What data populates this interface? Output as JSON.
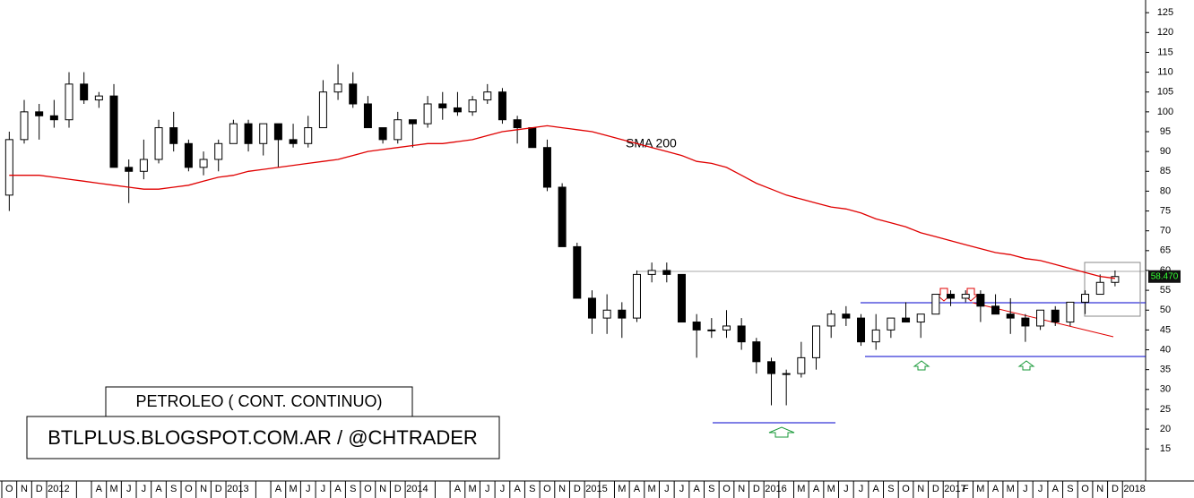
{
  "chart_data": {
    "type": "candlestick",
    "categories": [
      "O",
      "N",
      "D",
      "2012",
      null,
      null,
      "A",
      "M",
      "J",
      "J",
      "A",
      "S",
      "O",
      "N",
      "D",
      "2013",
      null,
      null,
      "A",
      "M",
      "J",
      "J",
      "A",
      "S",
      "O",
      "N",
      "D",
      "2014",
      null,
      null,
      "A",
      "M",
      "J",
      "J",
      "A",
      "S",
      "O",
      "N",
      "D",
      "2015",
      null,
      "M",
      "A",
      "M",
      "J",
      "J",
      "A",
      "S",
      "O",
      "N",
      "D",
      "2016",
      null,
      "M",
      "A",
      "M",
      "J",
      "J",
      "A",
      "S",
      "O",
      "N",
      "D",
      "2017",
      "F",
      "M",
      "A",
      "M",
      "J",
      "J",
      "A",
      "S",
      "O",
      "N",
      "D",
      "2018"
    ],
    "open": [
      79,
      93,
      100,
      99,
      98,
      107,
      103,
      104,
      86,
      85,
      88,
      96,
      92,
      86,
      88,
      92,
      97,
      92,
      97,
      93,
      92,
      96,
      105,
      107,
      102,
      96,
      93,
      98,
      97,
      102,
      101,
      100,
      103,
      105,
      98,
      96,
      91,
      81,
      66,
      53,
      48,
      50,
      48,
      59,
      60,
      59,
      47,
      45,
      45,
      46,
      42,
      37,
      34,
      34,
      38,
      46,
      49,
      48,
      42,
      45,
      48,
      47,
      49,
      54,
      53,
      54,
      51,
      49,
      48,
      46,
      50,
      47,
      52,
      54,
      57,
      null
    ],
    "high": [
      95,
      103,
      102,
      103,
      110,
      110,
      105,
      107,
      88,
      93,
      98,
      100,
      93,
      90,
      93,
      98,
      98,
      97,
      97,
      97,
      99,
      108,
      112,
      110,
      104,
      96,
      100,
      98,
      104,
      105,
      105,
      104,
      107,
      106,
      99,
      96,
      93,
      82,
      67,
      55,
      54,
      52,
      60,
      62,
      62,
      59,
      49,
      48,
      50,
      48,
      43,
      38,
      35,
      42,
      46,
      50,
      51,
      49,
      49,
      48,
      52,
      49,
      54,
      55,
      55,
      55,
      54,
      53,
      49,
      50,
      51,
      52,
      55,
      59,
      60,
      null
    ],
    "low": [
      75,
      92,
      93,
      96,
      96,
      102,
      101,
      86,
      77,
      83,
      87,
      90,
      85,
      84,
      85,
      92,
      90,
      89,
      86,
      91,
      91,
      96,
      103,
      101,
      96,
      92,
      92,
      91,
      96,
      98,
      99,
      99,
      102,
      97,
      92,
      91,
      80,
      66,
      53,
      44,
      44,
      43,
      47,
      57,
      57,
      47,
      38,
      43,
      43,
      40,
      34,
      26,
      26,
      33,
      35,
      43,
      46,
      41,
      40,
      43,
      48,
      43,
      49,
      51,
      52,
      47,
      49,
      44,
      42,
      45,
      46,
      46,
      49,
      54,
      56,
      null
    ],
    "close": [
      93,
      100,
      99,
      98,
      107,
      103,
      104,
      86,
      85,
      88,
      96,
      92,
      86,
      88,
      92,
      97,
      92,
      97,
      93,
      92,
      96,
      105,
      107,
      102,
      96,
      93,
      98,
      97,
      102,
      101,
      100,
      103,
      105,
      98,
      96,
      91,
      81,
      66,
      53,
      48,
      50,
      48,
      59,
      60,
      59,
      47,
      45,
      45,
      46,
      42,
      37,
      34,
      34,
      38,
      46,
      49,
      48,
      42,
      45,
      48,
      47,
      49,
      54,
      53,
      54,
      51,
      49,
      48,
      46,
      50,
      47,
      52,
      54,
      57,
      58.47,
      null
    ],
    "sma": {
      "name": "SMA 200",
      "color": "#e00000",
      "values": [
        84,
        84,
        84,
        83.5,
        83,
        82.5,
        82,
        81.5,
        81,
        80.5,
        80.5,
        81,
        81.5,
        82.5,
        83.5,
        84,
        85,
        85.5,
        86,
        86.5,
        87,
        87.5,
        88,
        89,
        90,
        90.5,
        91,
        91.5,
        92,
        92,
        92.5,
        93,
        94,
        95,
        95.5,
        96,
        96.5,
        96,
        95.5,
        95,
        94,
        93,
        92,
        91,
        90,
        89,
        87.5,
        87,
        86,
        84,
        82,
        80.5,
        79,
        78,
        77,
        76,
        75.5,
        74.5,
        73,
        72,
        71,
        69.5,
        68.5,
        67.5,
        66.5,
        65.5,
        64.5,
        64,
        63,
        62.5,
        61.5,
        60.5,
        59.5,
        58.5,
        58,
        null
      ]
    },
    "last_price": {
      "value": 58.47,
      "label": "58.470"
    },
    "ylim": [
      8.5,
      128.2
    ],
    "yticks": [
      15,
      20,
      25,
      30,
      35,
      40,
      45,
      50,
      55,
      60,
      65,
      70,
      75,
      80,
      85,
      90,
      95,
      100,
      105,
      110,
      115,
      120,
      125
    ],
    "title": "PETROLEO ( CONT. CONTINUO)",
    "subtitle": "BTLPLUS.BLOGSPOT.COM.AR / @CHTRADER"
  }
}
